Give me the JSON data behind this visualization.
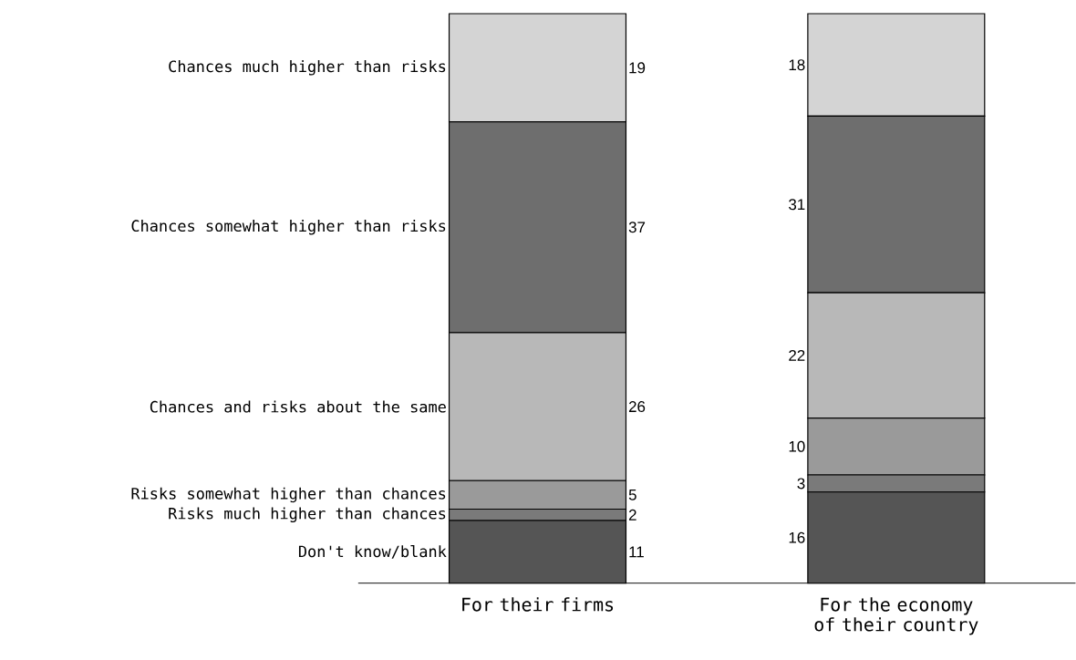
{
  "chart_data": {
    "type": "bar",
    "stacked": true,
    "data_labels": true,
    "legend": "left",
    "categories": [
      "For their firms",
      "For the economy of their country"
    ],
    "series": [
      {
        "name": "Don't know/blank",
        "color": "#555555",
        "values": [
          11,
          16
        ]
      },
      {
        "name": "Risks much higher than chances",
        "color": "#7a7a7a",
        "values": [
          2,
          3
        ]
      },
      {
        "name": "Risks somewhat higher than chances",
        "color": "#9a9a9a",
        "values": [
          5,
          10
        ]
      },
      {
        "name": "Chances and risks about the same",
        "color": "#b8b8b8",
        "values": [
          26,
          22
        ]
      },
      {
        "name": "Chances somewhat higher than risks",
        "color": "#6e6e6e",
        "values": [
          37,
          31
        ]
      },
      {
        "name": "Chances much higher than risks",
        "color": "#d4d4d4",
        "values": [
          19,
          18
        ]
      }
    ]
  }
}
